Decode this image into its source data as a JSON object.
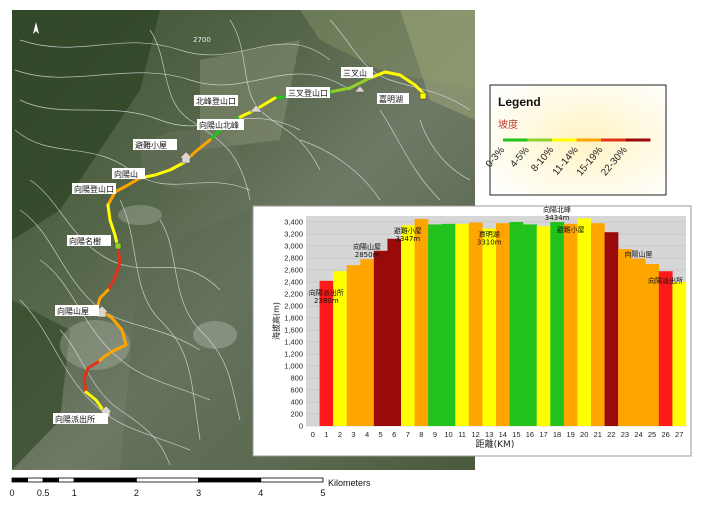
{
  "map_labels": {
    "north_peak_trailhead": "北峰登山口",
    "sancha_trailhead": "三叉登山口",
    "sancha_mountain": "三叉山",
    "jiaming_lake": "嘉明湖",
    "xiangyang_north_peak": "向陽山北峰",
    "refuge_hut": "避難小屋",
    "xiangyang_mountain": "向陽山",
    "xiangyang_trailhead": "向陽登山口",
    "xiangyang_famous_tree": "向陽名樹",
    "xiangyang_cabin": "向陽山屋",
    "xiangyang_police_station": "向陽派出所",
    "contour_2700": "2700"
  },
  "legend": {
    "title": "Legend",
    "subtitle": "坡度",
    "classes": [
      "0-3%",
      "4-5%",
      "8-10%",
      "11-14%",
      "15-19%",
      "22-30%"
    ],
    "colors": [
      "#22c21c",
      "#8fd12a",
      "#ffff00",
      "#ffa500",
      "#e2321a",
      "#9b0a0a"
    ]
  },
  "scale_bar": {
    "ticks": [
      "0",
      "0.5",
      "1",
      "2",
      "3",
      "4",
      "5"
    ],
    "unit": "Kilometers"
  },
  "chart_data": {
    "type": "bar",
    "ylabel": "海拔高(m)",
    "xlabel": "距離(KM)",
    "ylim": [
      0,
      3500
    ],
    "yticks": [
      0,
      200,
      400,
      600,
      800,
      1000,
      1200,
      1400,
      1600,
      1800,
      2000,
      2200,
      2400,
      2600,
      2800,
      3000,
      3200,
      3400
    ],
    "categories": [
      "0",
      "1",
      "2",
      "3",
      "4",
      "5",
      "6",
      "7",
      "8",
      "9",
      "10",
      "11",
      "12",
      "13",
      "14",
      "15",
      "16",
      "17",
      "18",
      "19",
      "20",
      "21",
      "22",
      "23",
      "24",
      "25",
      "26",
      "27"
    ],
    "values": [
      0,
      2420,
      2580,
      2680,
      2780,
      2920,
      3120,
      3347,
      3450,
      3360,
      3370,
      3370,
      3390,
      3290,
      3380,
      3400,
      3360,
      3330,
      3400,
      3370,
      3460,
      3380,
      3230,
      2950,
      2790,
      2700,
      2580,
      2400
    ],
    "colors": [
      "#ffff00",
      "#ff1a1a",
      "#ffff00",
      "#ffa500",
      "#ffa500",
      "#9b0a0a",
      "#9b0a0a",
      "#ffff00",
      "#ffa500",
      "#22c21c",
      "#22c21c",
      "#ffff00",
      "#ffa500",
      "#ffff00",
      "#ffa500",
      "#22c21c",
      "#22c21c",
      "#ffff00",
      "#22c21c",
      "#ffa500",
      "#ffff00",
      "#ffa500",
      "#9b0a0a",
      "#ffa500",
      "#ffa500",
      "#ffa500",
      "#ff1a1a",
      "#ffff00"
    ],
    "annotations": [
      {
        "bar": 1,
        "lines": [
          "向陽派出所",
          "2380m"
        ]
      },
      {
        "bar": 4,
        "lines": [
          "向陽山屋",
          "2850m"
        ]
      },
      {
        "bar": 7,
        "lines": [
          "避難小屋",
          "3347m"
        ]
      },
      {
        "bar": 13,
        "lines": [
          "嘉明湖",
          "3310m"
        ]
      },
      {
        "bar": 18,
        "lines": [
          "向陽北峰",
          "3434m"
        ]
      },
      {
        "bar": 19,
        "lines": [
          "避難小屋"
        ]
      },
      {
        "bar": 24,
        "lines": [
          "向陽山屋"
        ]
      },
      {
        "bar": 26,
        "lines": [
          "向陽派出所"
        ]
      }
    ]
  }
}
